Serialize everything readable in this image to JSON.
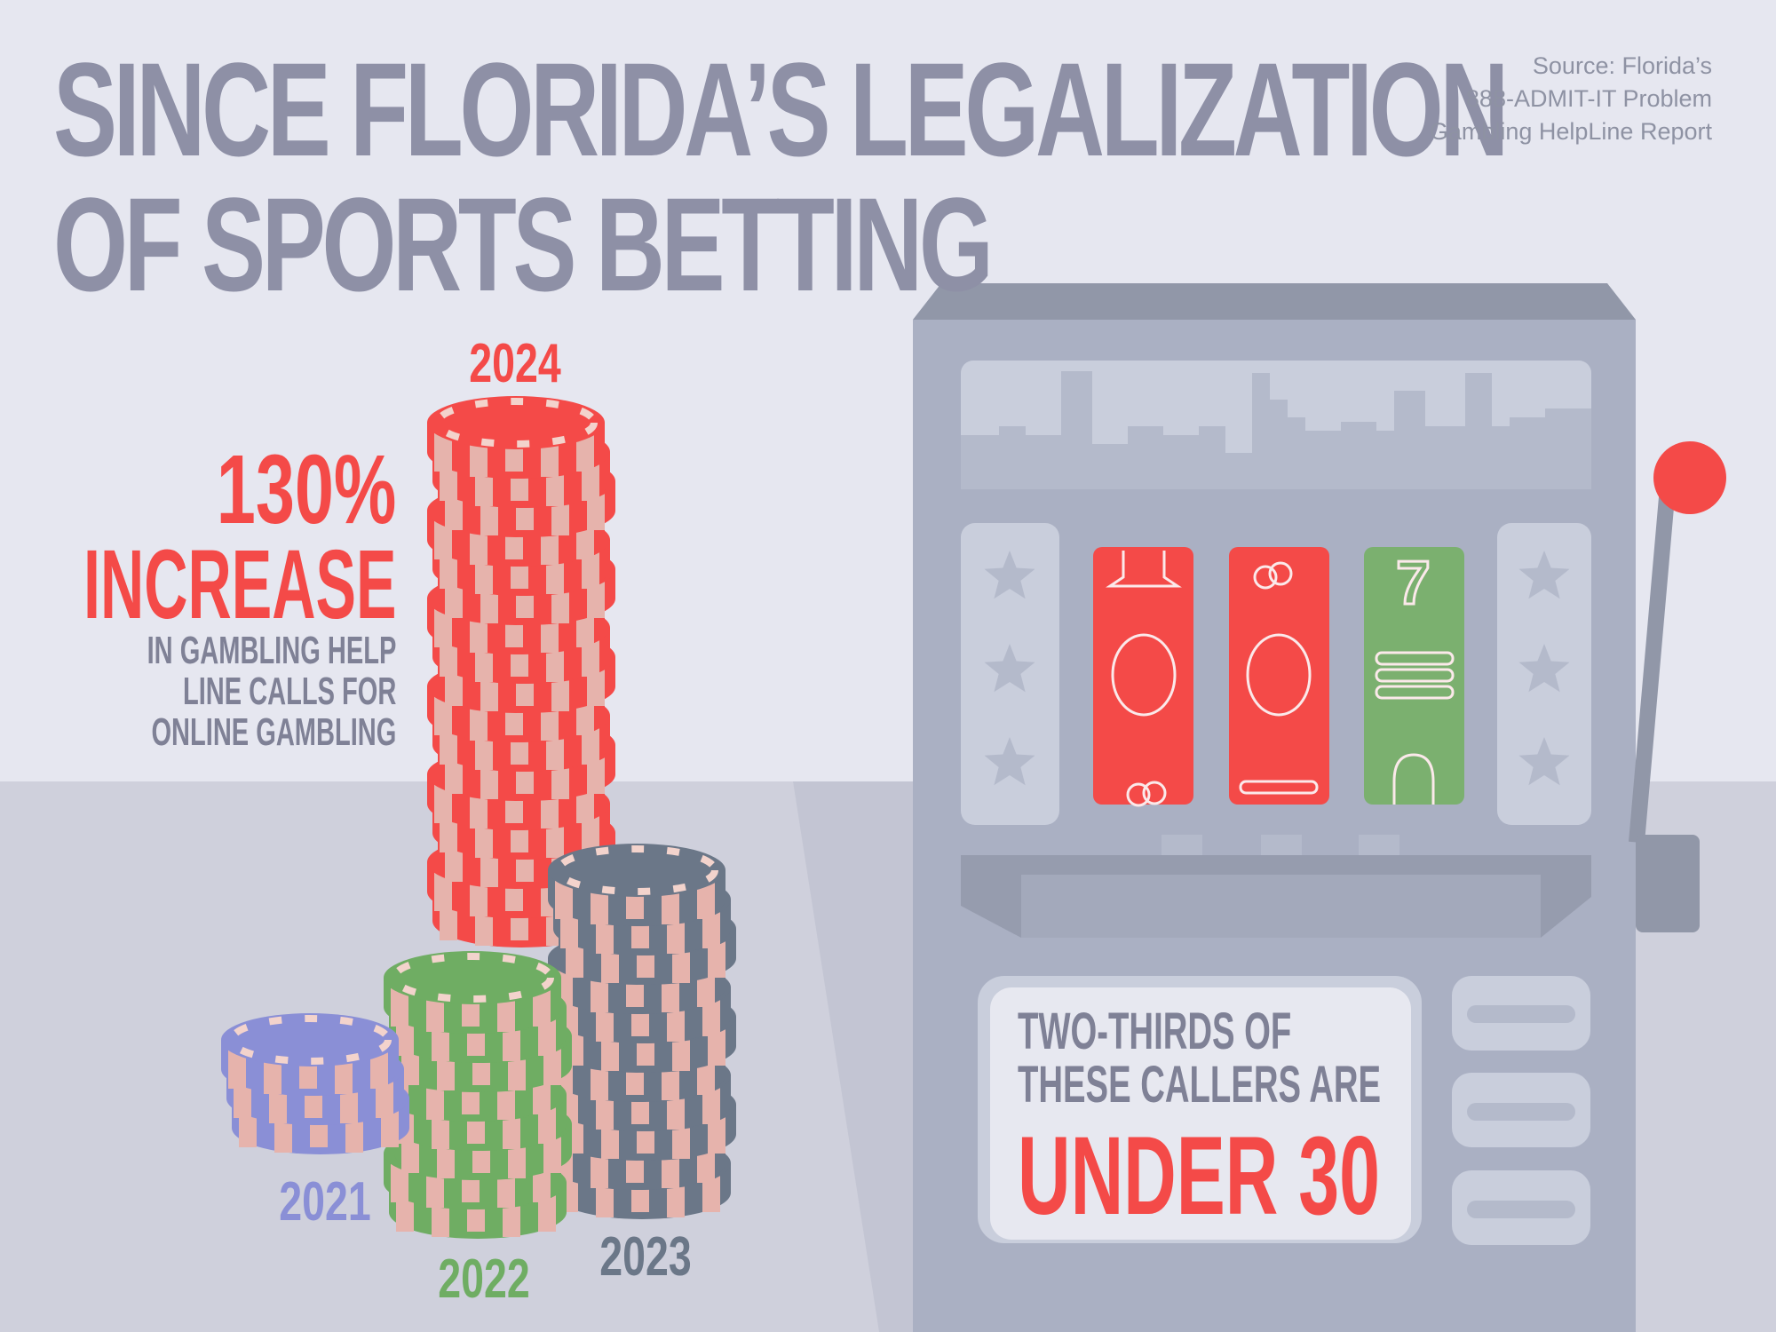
{
  "title": {
    "line1": "SINCE FLORIDA’S LEGALIZATION",
    "line2": "OF SPORTS BETTING"
  },
  "source": {
    "line1": "Source: Florida’s",
    "line2": "888-ADMIT-IT Problem",
    "line3": "Gambling HelpLine Report"
  },
  "stat": {
    "value": "130%",
    "label": "INCREASE",
    "desc1": "IN GAMBLING HELP",
    "desc2": "LINE CALLS FOR",
    "desc3": "ONLINE GAMBLING"
  },
  "years": [
    {
      "label": "2021",
      "color": "#8a8fd6"
    },
    {
      "label": "2022",
      "color": "#6fad63"
    },
    {
      "label": "2023",
      "color": "#6b7788"
    },
    {
      "label": "2024",
      "color": "#f44a48"
    }
  ],
  "callout": {
    "line1": "TWO-THIRDS OF",
    "line2": "THESE CALLERS ARE",
    "highlight": "UNDER 30"
  },
  "colors": {
    "background": "#e6e7f0",
    "floor": "#cfd0dc",
    "accent": "#f44a48",
    "text": "#8e90a6",
    "machine": "#aab0c3"
  }
}
